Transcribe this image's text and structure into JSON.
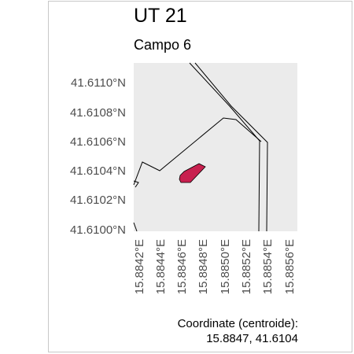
{
  "title": "UT 21",
  "subtitle": "Campo 6",
  "map": {
    "lat_ticks": [
      "41.6110°N",
      "41.6108°N",
      "41.6106°N",
      "41.6104°N",
      "41.6102°N",
      "41.6100°N"
    ],
    "lon_ticks": [
      "15.8842°E",
      "15.8844°E",
      "15.8846°E",
      "15.8848°E",
      "15.8850°E",
      "15.8852°E",
      "15.8854°E",
      "15.8856°E"
    ],
    "panel_color": "#ebebeb",
    "parcel_color": "#c8204f",
    "line_color": "#000000"
  },
  "caption": {
    "line1": "Coordinate (centroide):",
    "line2": "15.8847, 41.6104"
  }
}
